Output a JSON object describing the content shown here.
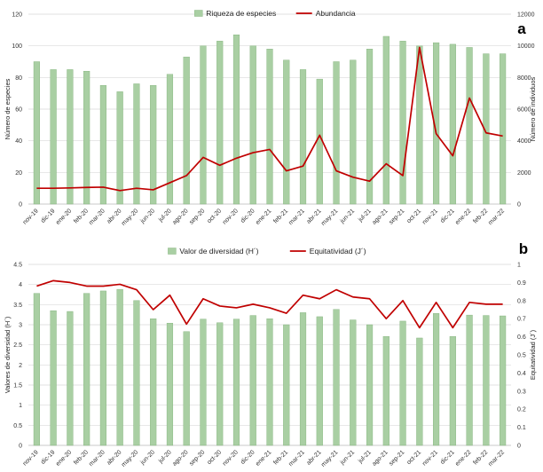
{
  "chart_data": [
    {
      "panel": "a",
      "type": "bar",
      "categories": [
        "nov-19",
        "dic-19",
        "ene-20",
        "feb-20",
        "mar-20",
        "abr-20",
        "may-20",
        "jun-20",
        "jul-20",
        "ago-20",
        "sep-20",
        "oct-20",
        "nov-20",
        "dic-20",
        "ene-21",
        "feb-21",
        "mar-21",
        "abr-21",
        "may-21",
        "jun-21",
        "jul-21",
        "ago-21",
        "sep-21",
        "oct-21",
        "nov-21",
        "dic-21",
        "ene-22",
        "feb-22",
        "mar-22"
      ],
      "series": [
        {
          "name": "Riqueza de especies",
          "type": "bar",
          "axis": "left",
          "color": "#a9cfa3",
          "values": [
            90,
            85,
            85,
            84,
            75,
            71,
            76,
            75,
            82,
            93,
            100,
            103,
            107,
            100,
            98,
            91,
            85,
            79,
            90,
            91,
            98,
            106,
            103,
            100,
            102,
            101,
            99,
            95,
            95
          ]
        },
        {
          "name": "Abundancia",
          "type": "line",
          "axis": "right",
          "color": "#c00000",
          "values": [
            1000,
            1000,
            1020,
            1050,
            1070,
            850,
            1000,
            900,
            1350,
            1800,
            2950,
            2450,
            2900,
            3250,
            3450,
            2100,
            2400,
            4350,
            2100,
            1700,
            1450,
            2550,
            1800,
            9900,
            4450,
            3050,
            6700,
            4500,
            4300
          ]
        }
      ],
      "ylabel": "Número de especies",
      "ylabel_right": "Número de individuos",
      "ylim": [
        0,
        120
      ],
      "yticks": [
        "0",
        "20",
        "40",
        "60",
        "80",
        "100",
        "120"
      ],
      "ylim_right": [
        0,
        12000
      ],
      "yticks_right": [
        "0",
        "2000",
        "4000",
        "6000",
        "8000",
        "10000",
        "12000"
      ],
      "grid": true,
      "legend_position": "top-center"
    },
    {
      "panel": "b",
      "type": "bar",
      "categories": [
        "nov-19",
        "dic-19",
        "ene-20",
        "feb-20",
        "mar-20",
        "abr-20",
        "may-20",
        "jun-20",
        "jul-20",
        "ago-20",
        "sep-20",
        "oct-20",
        "nov-20",
        "dic-20",
        "ene-21",
        "feb-21",
        "mar-21",
        "abr-21",
        "may-21",
        "jun-21",
        "jul-21",
        "ago-21",
        "sep-21",
        "oct-21",
        "nov-21",
        "dic-21",
        "ene-22",
        "feb-22",
        "mar-22"
      ],
      "series": [
        {
          "name": "Valor de diversidad (H´)",
          "type": "bar",
          "axis": "left",
          "color": "#a9cfa3",
          "values": [
            3.78,
            3.35,
            3.33,
            3.78,
            3.84,
            3.88,
            3.6,
            3.15,
            3.04,
            2.83,
            3.14,
            3.05,
            3.14,
            3.23,
            3.15,
            3.0,
            3.3,
            3.2,
            3.38,
            3.12,
            3.0,
            2.71,
            3.09,
            2.67,
            3.28,
            2.71,
            3.24,
            3.23,
            3.22
          ]
        },
        {
          "name": "Equitatividad (J´)",
          "type": "line",
          "axis": "right",
          "color": "#c00000",
          "values": [
            0.88,
            0.91,
            0.9,
            0.88,
            0.88,
            0.89,
            0.86,
            0.75,
            0.83,
            0.67,
            0.81,
            0.77,
            0.76,
            0.78,
            0.76,
            0.73,
            0.83,
            0.81,
            0.86,
            0.82,
            0.81,
            0.7,
            0.8,
            0.65,
            0.79,
            0.65,
            0.79,
            0.78,
            0.78
          ]
        }
      ],
      "ylabel": "Valores de diversidad (H´)",
      "ylabel_right": "Equitatividad (J´)",
      "ylim": [
        0,
        4.5
      ],
      "yticks": [
        "0",
        "0.5",
        "1",
        "1.5",
        "2",
        "2.5",
        "3",
        "3.5",
        "4",
        "4.5"
      ],
      "ylim_right": [
        0,
        1
      ],
      "yticks_right": [
        "0",
        "0.1",
        "0.2",
        "0.3",
        "0.4",
        "0.5",
        "0.6",
        "0.7",
        "0.8",
        "0.9",
        "1"
      ],
      "grid": true,
      "legend_position": "top-center"
    }
  ]
}
